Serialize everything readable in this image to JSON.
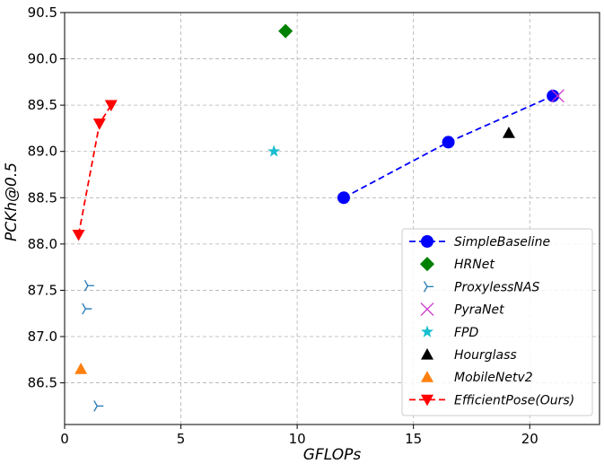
{
  "chart_data": {
    "type": "scatter",
    "xlabel": "GFLOPs",
    "ylabel": "PCKh@0.5",
    "xlim": [
      0,
      23
    ],
    "ylim": [
      86.05,
      90.5
    ],
    "xticks": [
      0,
      5,
      10,
      15,
      20
    ],
    "yticks": [
      86.5,
      87.0,
      87.5,
      88.0,
      88.5,
      89.0,
      89.5,
      90.0,
      90.5
    ],
    "grid": true,
    "legend_position": "lower-right",
    "series": [
      {
        "name": "SimpleBaseline",
        "marker": "circle",
        "line": "dashed",
        "color": "#0000ff",
        "points": [
          [
            12.0,
            88.5
          ],
          [
            16.5,
            89.1
          ],
          [
            21.0,
            89.6
          ]
        ]
      },
      {
        "name": "HRNet",
        "marker": "diamond",
        "line": "none",
        "color": "#008000",
        "points": [
          [
            9.5,
            90.3
          ]
        ]
      },
      {
        "name": "ProxylessNAS",
        "marker": "tri_right",
        "line": "none",
        "color": "#1f77b4",
        "points": [
          [
            1.0,
            87.55
          ],
          [
            0.9,
            87.3
          ],
          [
            1.4,
            86.25
          ]
        ]
      },
      {
        "name": "PyraNet",
        "marker": "x",
        "line": "none",
        "color": "#cc33cc",
        "points": [
          [
            21.2,
            89.6
          ]
        ]
      },
      {
        "name": "FPD",
        "marker": "star",
        "line": "none",
        "color": "#17becf",
        "points": [
          [
            9.0,
            89.0
          ]
        ]
      },
      {
        "name": "Hourglass",
        "marker": "triangle_up",
        "line": "none",
        "color": "#000000",
        "points": [
          [
            19.1,
            89.2
          ]
        ]
      },
      {
        "name": "MobileNetv2",
        "marker": "triangle_up",
        "line": "none",
        "color": "#ff7f0e",
        "points": [
          [
            0.7,
            86.65
          ]
        ]
      },
      {
        "name": "EfficientPose(Ours)",
        "marker": "triangle_down",
        "line": "dashed",
        "color": "#ff0000",
        "points": [
          [
            0.6,
            88.1
          ],
          [
            1.5,
            89.3
          ],
          [
            2.0,
            89.5
          ]
        ]
      }
    ]
  }
}
